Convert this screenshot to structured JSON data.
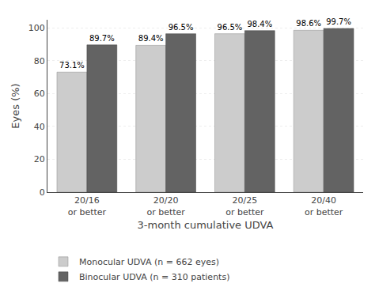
{
  "chart_data": {
    "type": "bar",
    "categories": [
      "20/16\nor better",
      "20/20\nor better",
      "20/25\nor better",
      "20/40\nor better"
    ],
    "series": [
      {
        "name": "Monocular UDVA (n = 662 eyes)",
        "color": "#cccccc",
        "values": [
          73.1,
          89.4,
          96.5,
          98.6
        ],
        "value_labels": [
          "73.1%",
          "89.4%",
          "96.5%",
          "98.6%"
        ]
      },
      {
        "name": "Binocular UDVA (n = 310 patients)",
        "color": "#636363",
        "values": [
          89.7,
          96.5,
          98.4,
          99.7
        ],
        "value_labels": [
          "89.7%",
          "96.5%",
          "98.4%",
          "99.7%"
        ]
      }
    ],
    "xlabel": "3-month cumulative UDVA",
    "ylabel": "Eyes (%)",
    "ylim": [
      0,
      105
    ],
    "yticks": [
      0,
      20,
      40,
      60,
      80,
      100
    ],
    "grid": true,
    "legend": "bottom",
    "data_labels": true
  }
}
